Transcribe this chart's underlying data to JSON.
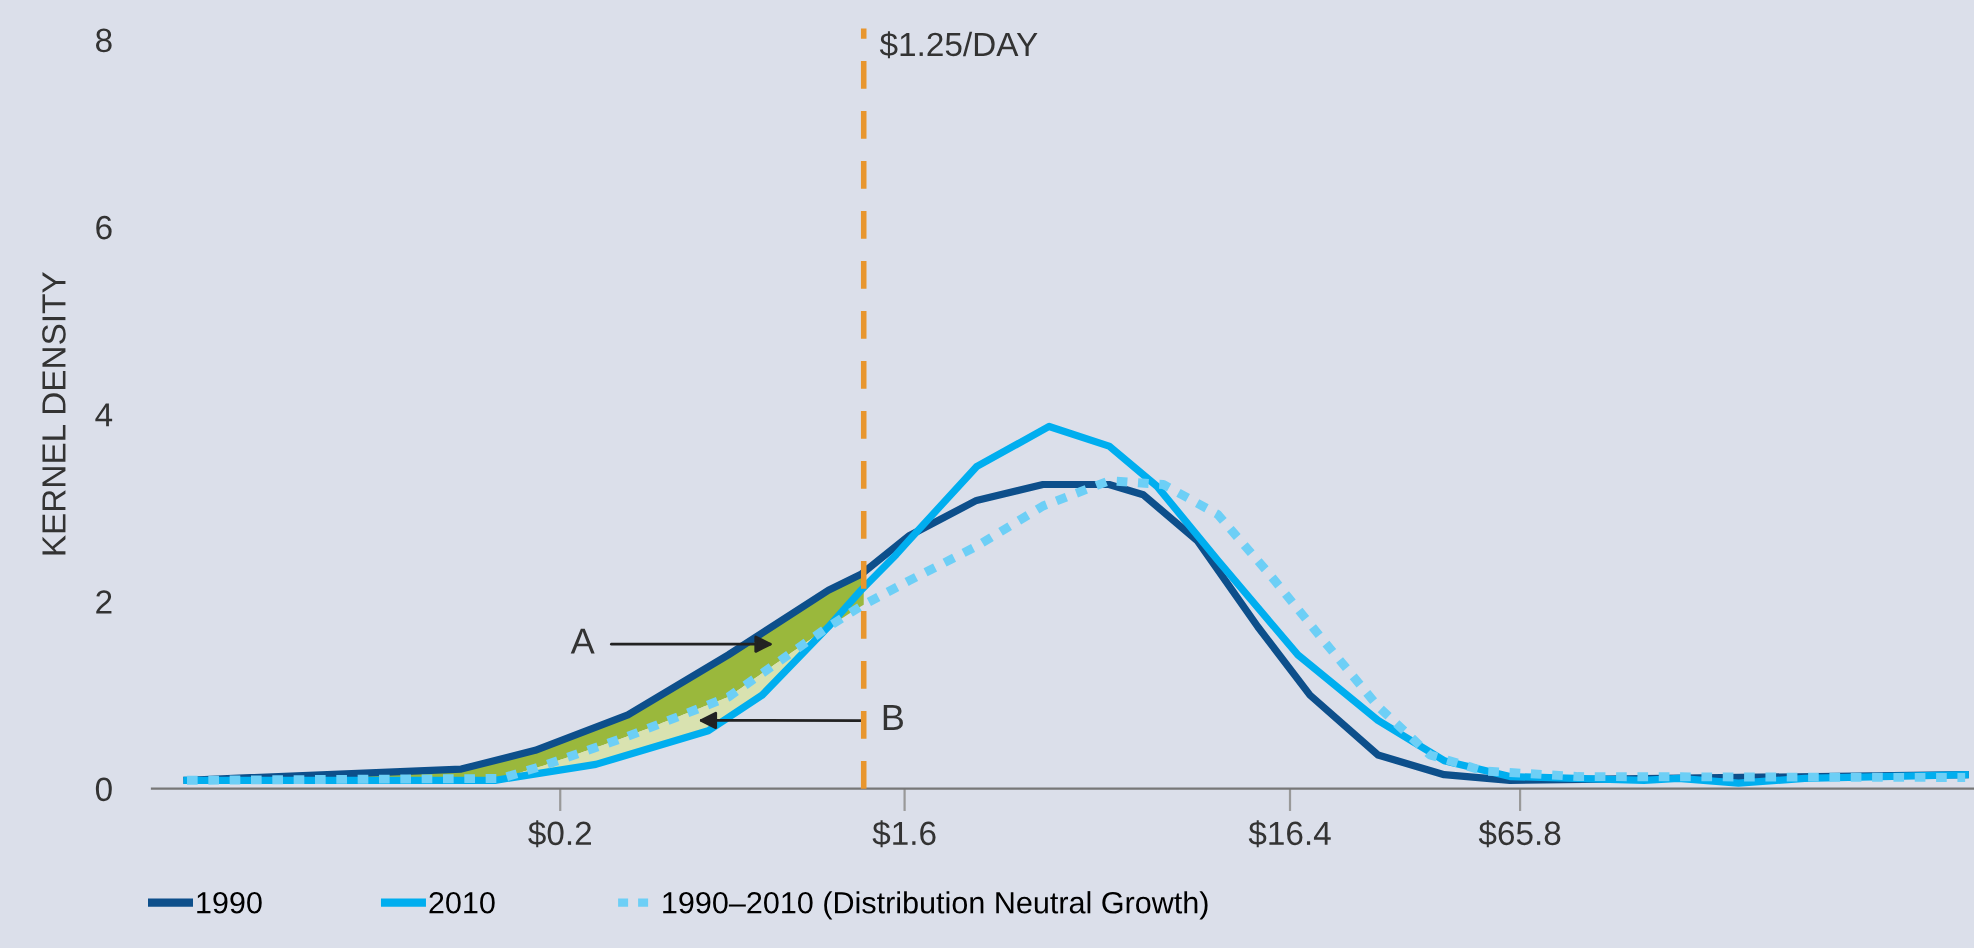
{
  "chart_data": {
    "type": "line",
    "ylabel": "KERNEL DENSITY",
    "log": "x",
    "xlim": [
      0.017,
      1020
    ],
    "xticks": [
      {
        "value": 0.2,
        "label": "$0.2"
      },
      {
        "value": 1.6,
        "label": "$1.6"
      },
      {
        "value": 16.4,
        "label": "$16.4"
      },
      {
        "value": 65.8,
        "label": "$65.8"
      }
    ],
    "ylim": [
      0,
      8
    ],
    "yticks": [
      0,
      2,
      4,
      6,
      8
    ],
    "grid": false,
    "legend": "bottom",
    "series": [
      {
        "name": "1990",
        "color": "#0d4f8b",
        "line_style": "solid",
        "x": [
          0.021,
          0.11,
          0.172,
          0.301,
          0.552,
          1.01,
          1.23,
          1.64,
          2.47,
          3.69,
          5.5,
          6.76,
          9.37,
          13.5,
          18.5,
          27.9,
          41.6,
          61.9,
          967
        ],
        "values": [
          0.09,
          0.21,
          0.41,
          0.79,
          1.43,
          2.12,
          2.29,
          2.7,
          3.08,
          3.25,
          3.25,
          3.14,
          2.65,
          1.73,
          1.0,
          0.36,
          0.15,
          0.09,
          0.15
        ]
      },
      {
        "name": "2010",
        "color": "#00aeef",
        "line_style": "solid",
        "x": [
          0.021,
          0.135,
          0.248,
          0.489,
          0.677,
          1.01,
          1.23,
          1.52,
          1.64,
          2.47,
          3.83,
          5.5,
          7.35,
          10.6,
          17.2,
          27.9,
          41.6,
          61.9,
          139,
          171,
          246,
          367,
          967
        ],
        "values": [
          0.09,
          0.09,
          0.26,
          0.62,
          1.0,
          1.73,
          2.12,
          2.5,
          2.65,
          3.44,
          3.87,
          3.66,
          3.23,
          2.44,
          1.43,
          0.73,
          0.3,
          0.13,
          0.09,
          0.11,
          0.06,
          0.11,
          0.15
        ]
      },
      {
        "name": "1990–2010 (Distribution Neutral Growth)",
        "color": "#6dcff6",
        "line_style": "dotted",
        "x": [
          0.021,
          0.14,
          0.185,
          0.301,
          0.552,
          1.01,
          1.23,
          1.64,
          2.47,
          3.69,
          5.5,
          7.63,
          10.6,
          14.5,
          20.1,
          27.9,
          38.2,
          52.9,
          93.5,
          967
        ],
        "values": [
          0.09,
          0.11,
          0.26,
          0.56,
          0.98,
          1.73,
          1.95,
          2.22,
          2.59,
          3.02,
          3.29,
          3.25,
          2.93,
          2.29,
          1.58,
          0.88,
          0.36,
          0.19,
          0.13,
          0.12
        ]
      }
    ],
    "ref_lines": [
      {
        "axis": "x",
        "value": 1.25,
        "label": "$1.25/DAY",
        "color": "#e8962e",
        "line_style": "dashed"
      }
    ],
    "annotations": [
      "A",
      {
        "text": "B",
        "x": 0.46,
        "y": 0.73
      }
    ]
  }
}
